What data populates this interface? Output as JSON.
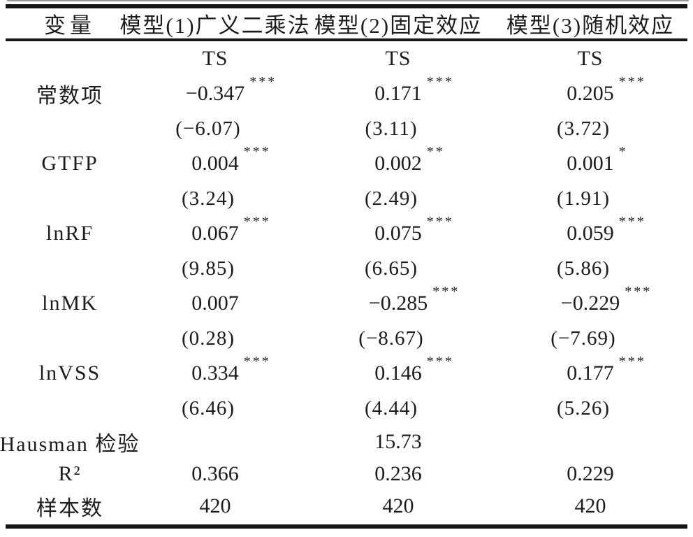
{
  "table": {
    "header": {
      "variable": "变量",
      "models": [
        "模型(1)广义二乘法",
        "模型(2)固定效应",
        "模型(3)随机效应"
      ]
    },
    "subheader": {
      "labels": [
        "TS",
        "TS",
        "TS"
      ]
    },
    "rows": [
      {
        "label": "常数项",
        "coefs": [
          {
            "value": "−0.347",
            "stars": "***"
          },
          {
            "value": "0.171",
            "stars": "***"
          },
          {
            "value": "0.205",
            "stars": "***"
          }
        ],
        "tvals": [
          "(−6.07)",
          "(3.11)",
          "(3.72)"
        ]
      },
      {
        "label": "GTFP",
        "coefs": [
          {
            "value": "0.004",
            "stars": "***"
          },
          {
            "value": "0.002",
            "stars": "**"
          },
          {
            "value": "0.001",
            "stars": "*"
          }
        ],
        "tvals": [
          "(3.24)",
          "(2.49)",
          "(1.91)"
        ]
      },
      {
        "label": "lnRF",
        "coefs": [
          {
            "value": "0.067",
            "stars": "***"
          },
          {
            "value": "0.075",
            "stars": "***"
          },
          {
            "value": "0.059",
            "stars": "***"
          }
        ],
        "tvals": [
          "(9.85)",
          "(6.65)",
          "(5.86)"
        ]
      },
      {
        "label": "lnMK",
        "coefs": [
          {
            "value": "0.007",
            "stars": ""
          },
          {
            "value": "−0.285",
            "stars": "***"
          },
          {
            "value": "−0.229",
            "stars": "***"
          }
        ],
        "tvals": [
          "(0.28)",
          "(−8.67)",
          "(−7.69)"
        ]
      },
      {
        "label": "lnVSS",
        "coefs": [
          {
            "value": "0.334",
            "stars": "***"
          },
          {
            "value": "0.146",
            "stars": "***"
          },
          {
            "value": "0.177",
            "stars": "***"
          }
        ],
        "tvals": [
          "(6.46)",
          "(4.44)",
          "(5.26)"
        ]
      }
    ],
    "footer": [
      {
        "label": "Hausman 检验",
        "values": [
          "",
          "15.73",
          ""
        ]
      },
      {
        "label": "R²",
        "values": [
          "0.366",
          "0.236",
          "0.229"
        ]
      },
      {
        "label": "样本数",
        "values": [
          "420",
          "420",
          "420"
        ]
      }
    ]
  }
}
